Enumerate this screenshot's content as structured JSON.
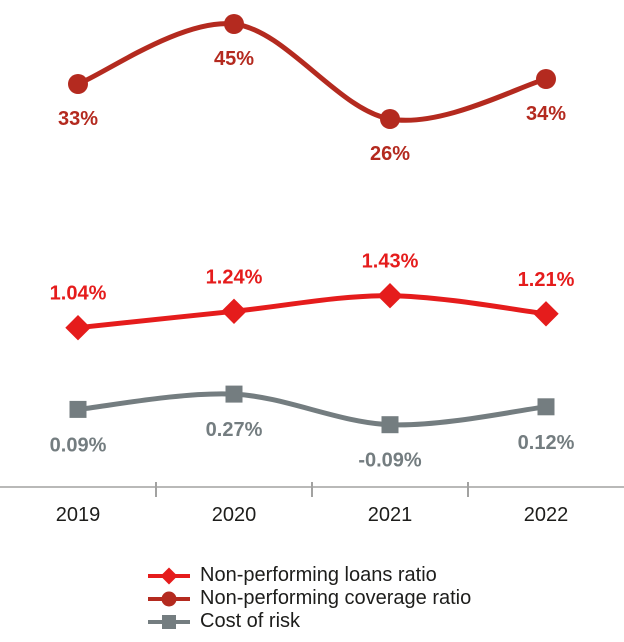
{
  "chart_data": {
    "type": "line",
    "title": "",
    "xlabel": "",
    "ylabel": "",
    "grid": false,
    "legend_position": "bottom",
    "x": [
      "2019",
      "2020",
      "2021",
      "2022"
    ],
    "series": [
      {
        "name": "Non-performing loans ratio",
        "values": [
          1.04,
          1.24,
          1.43,
          1.21
        ],
        "labels": [
          "1.04%",
          "1.24%",
          "1.43%",
          "1.21%"
        ],
        "marker": "diamond",
        "color": "#e51c1c",
        "label_position": "above"
      },
      {
        "name": "Non-performing coverage ratio",
        "values": [
          33,
          45,
          26,
          34
        ],
        "labels": [
          "33%",
          "45%",
          "26%",
          "34%"
        ],
        "marker": "circle",
        "color": "#b42a1f",
        "label_position": "below"
      },
      {
        "name": "Cost of risk",
        "values": [
          0.09,
          0.27,
          -0.09,
          0.12
        ],
        "labels": [
          "0.09%",
          "0.27%",
          "-0.09%",
          "0.12%"
        ],
        "marker": "square",
        "color": "#747d80",
        "label_position": "below"
      }
    ],
    "axis_color": "#a2a2a1",
    "tick_label_color": "#1d1d1b"
  },
  "legend": {
    "items": [
      {
        "label": "Non-performing loans ratio"
      },
      {
        "label": "Non-performing coverage ratio"
      },
      {
        "label": "Cost of risk"
      }
    ]
  }
}
